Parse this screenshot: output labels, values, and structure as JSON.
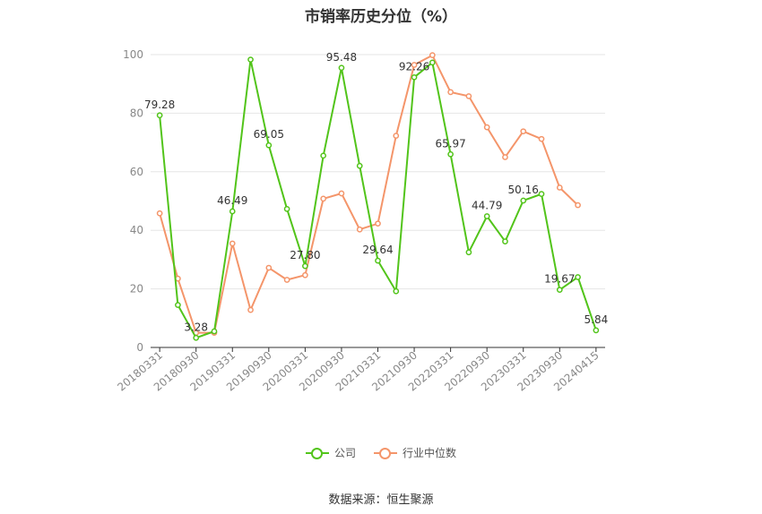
{
  "chart_data": {
    "type": "line",
    "title": "市销率历史分位（%）",
    "ylim": [
      0,
      100
    ],
    "yticks": [
      0,
      20,
      40,
      60,
      80,
      100
    ],
    "x": [
      "20180331",
      "20180630",
      "20180930",
      "20181231",
      "20190331",
      "20190630",
      "20190930",
      "20191231",
      "20200331",
      "20200630",
      "20200930",
      "20201231",
      "20210331",
      "20210630",
      "20210930",
      "20211231",
      "20220331",
      "20220630",
      "20220930",
      "20221231",
      "20230331",
      "20230630",
      "20230930",
      "20231231",
      "20240415"
    ],
    "xtick_labels": [
      "20180331",
      "20180930",
      "20190331",
      "20190930",
      "20200331",
      "20200930",
      "20210331",
      "20210930",
      "20220331",
      "20220930",
      "20230331",
      "20230930",
      "20240415"
    ],
    "grid": true,
    "legend_position": "bottom",
    "series": [
      {
        "name": "公司",
        "color": "#52c41a",
        "values": [
          79.28,
          14.5,
          3.28,
          5.5,
          46.49,
          98.3,
          69.05,
          47.3,
          27.8,
          65.5,
          95.48,
          62.0,
          29.64,
          19.2,
          92.26,
          97.3,
          65.97,
          32.5,
          44.79,
          36.2,
          50.16,
          52.4,
          19.67,
          24.0,
          5.84
        ],
        "labels": {
          "0": "79.28",
          "2": "3.28",
          "4": "46.49",
          "6": "69.05",
          "8": "27.80",
          "10": "95.48",
          "12": "29.64",
          "14": "92.26",
          "16": "65.97",
          "18": "44.79",
          "20": "50.16",
          "22": "19.67",
          "24": "5.84"
        }
      },
      {
        "name": "行业中位数",
        "color": "#f4956a",
        "values": [
          45.8,
          23.5,
          5.0,
          5.0,
          35.5,
          12.8,
          27.2,
          23.1,
          24.7,
          50.8,
          52.6,
          40.3,
          42.3,
          72.3,
          96.5,
          99.8,
          87.2,
          85.8,
          75.2,
          65.0,
          73.8,
          71.2,
          54.6,
          48.6,
          null
        ]
      }
    ]
  },
  "legend": {
    "company_label": "公司",
    "industry_label": "行业中位数"
  },
  "source_text": "数据来源：恒生聚源"
}
